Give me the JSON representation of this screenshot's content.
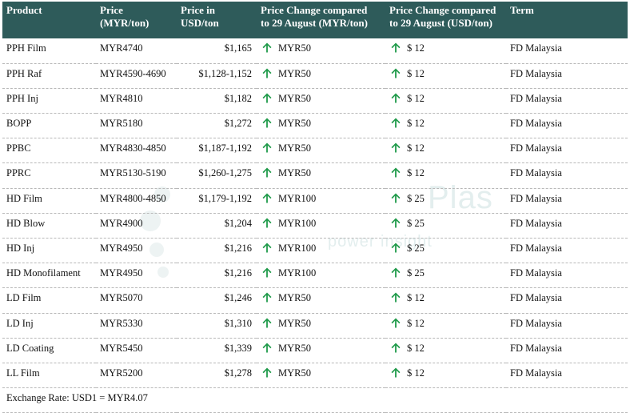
{
  "headers": {
    "product": "Product",
    "price_line1": "Price",
    "price_line2": "(MYR/ton)",
    "usd_line1": "Price in",
    "usd_line2": "USD/ton",
    "chg_myr_line1": "Price Change compared",
    "chg_myr_line2": "to 29 August (MYR/ton)",
    "chg_usd_line1": "Price Change compared",
    "chg_usd_line2": "to 29 August (USD/ton)",
    "term": "Term"
  },
  "rows": [
    {
      "product": "PPH Film",
      "price": "MYR4740",
      "usd": "$1,165",
      "chg_myr": "MYR50",
      "chg_usd": "$ 12",
      "term": "FD Malaysia"
    },
    {
      "product": "PPH Raf",
      "price": "MYR4590-4690",
      "usd": "$1,128-1,152",
      "chg_myr": "MYR50",
      "chg_usd": "$ 12",
      "term": "FD Malaysia"
    },
    {
      "product": "PPH Inj",
      "price": "MYR4810",
      "usd": "$1,182",
      "chg_myr": "MYR50",
      "chg_usd": "$ 12",
      "term": "FD Malaysia"
    },
    {
      "product": "BOPP",
      "price": "MYR5180",
      "usd": "$1,272",
      "chg_myr": "MYR50",
      "chg_usd": "$ 12",
      "term": "FD Malaysia"
    },
    {
      "product": "PPBC",
      "price": "MYR4830-4850",
      "usd": "$1,187-1,192",
      "chg_myr": "MYR50",
      "chg_usd": "$ 12",
      "term": "FD Malaysia"
    },
    {
      "product": "PPRC",
      "price": "MYR5130-5190",
      "usd": "$1,260-1,275",
      "chg_myr": "MYR50",
      "chg_usd": "$ 12",
      "term": "FD Malaysia"
    },
    {
      "product": "HD Film",
      "price": "MYR4800-4850",
      "usd": "$1,179-1,192",
      "chg_myr": "MYR100",
      "chg_usd": "$ 25",
      "term": "FD Malaysia"
    },
    {
      "product": "HD Blow",
      "price": "MYR4900",
      "usd": "$1,204",
      "chg_myr": "MYR100",
      "chg_usd": "$ 25",
      "term": "FD Malaysia"
    },
    {
      "product": "HD Inj",
      "price": "MYR4950",
      "usd": "$1,216",
      "chg_myr": "MYR100",
      "chg_usd": "$ 25",
      "term": "FD Malaysia"
    },
    {
      "product": "HD Monofilament",
      "price": "MYR4950",
      "usd": "$1,216",
      "chg_myr": "MYR100",
      "chg_usd": "$ 25",
      "term": "FD Malaysia"
    },
    {
      "product": "LD Film",
      "price": "MYR5070",
      "usd": "$1,246",
      "chg_myr": "MYR50",
      "chg_usd": "$ 12",
      "term": "FD Malaysia"
    },
    {
      "product": "LD Inj",
      "price": "MYR5330",
      "usd": "$1,310",
      "chg_myr": "MYR50",
      "chg_usd": "$ 12",
      "term": "FD Malaysia"
    },
    {
      "product": "LD Coating",
      "price": "MYR5450",
      "usd": "$1,339",
      "chg_myr": "MYR50",
      "chg_usd": "$ 12",
      "term": "FD Malaysia"
    },
    {
      "product": "LL Film",
      "price": "MYR5200",
      "usd": "$1,278",
      "chg_myr": "MYR50",
      "chg_usd": "$ 12",
      "term": "FD Malaysia"
    }
  ],
  "footer": "Exchange Rate: USD1 = MYR4.07",
  "watermark": {
    "name": "Plas",
    "tagline": "power insight"
  },
  "colors": {
    "header_bg": "#2e5b5a",
    "arrow": "#1f9a4a"
  },
  "icons": {
    "change_direction": "arrow-up-icon"
  }
}
